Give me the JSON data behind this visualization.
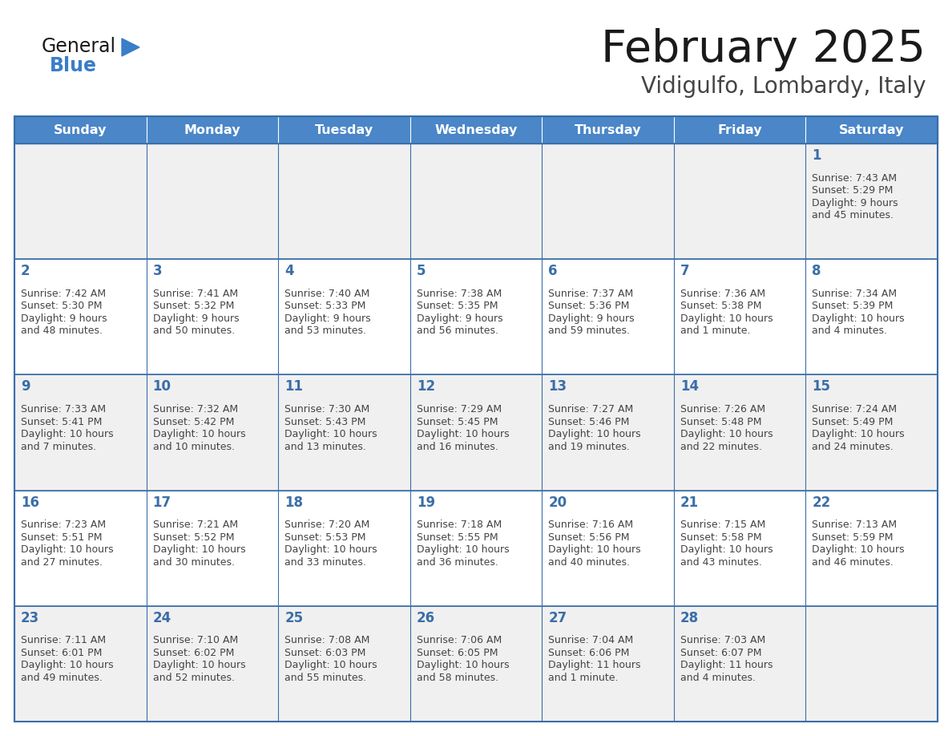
{
  "title": "February 2025",
  "subtitle": "Vidigulfo, Lombardy, Italy",
  "days_of_week": [
    "Sunday",
    "Monday",
    "Tuesday",
    "Wednesday",
    "Thursday",
    "Friday",
    "Saturday"
  ],
  "header_bg": "#4A86C8",
  "header_text": "#FFFFFF",
  "cell_bg_white": "#FFFFFF",
  "cell_bg_gray": "#F0F0F0",
  "day_num_bg": "#E8E8E8",
  "border_color": "#3A6EA8",
  "text_color": "#444444",
  "title_color": "#1a1a1a",
  "subtitle_color": "#444444",
  "day_num_color": "#3A6EA8",
  "logo_general_color": "#1a1a1a",
  "logo_blue_color": "#3A7DC9",
  "calendar": [
    [
      null,
      null,
      null,
      null,
      null,
      null,
      {
        "day": 1,
        "sunrise": "7:43 AM",
        "sunset": "5:29 PM",
        "daylight": "9 hours and 45 minutes."
      }
    ],
    [
      {
        "day": 2,
        "sunrise": "7:42 AM",
        "sunset": "5:30 PM",
        "daylight": "9 hours and 48 minutes."
      },
      {
        "day": 3,
        "sunrise": "7:41 AM",
        "sunset": "5:32 PM",
        "daylight": "9 hours and 50 minutes."
      },
      {
        "day": 4,
        "sunrise": "7:40 AM",
        "sunset": "5:33 PM",
        "daylight": "9 hours and 53 minutes."
      },
      {
        "day": 5,
        "sunrise": "7:38 AM",
        "sunset": "5:35 PM",
        "daylight": "9 hours and 56 minutes."
      },
      {
        "day": 6,
        "sunrise": "7:37 AM",
        "sunset": "5:36 PM",
        "daylight": "9 hours and 59 minutes."
      },
      {
        "day": 7,
        "sunrise": "7:36 AM",
        "sunset": "5:38 PM",
        "daylight": "10 hours and 1 minute."
      },
      {
        "day": 8,
        "sunrise": "7:34 AM",
        "sunset": "5:39 PM",
        "daylight": "10 hours and 4 minutes."
      }
    ],
    [
      {
        "day": 9,
        "sunrise": "7:33 AM",
        "sunset": "5:41 PM",
        "daylight": "10 hours and 7 minutes."
      },
      {
        "day": 10,
        "sunrise": "7:32 AM",
        "sunset": "5:42 PM",
        "daylight": "10 hours and 10 minutes."
      },
      {
        "day": 11,
        "sunrise": "7:30 AM",
        "sunset": "5:43 PM",
        "daylight": "10 hours and 13 minutes."
      },
      {
        "day": 12,
        "sunrise": "7:29 AM",
        "sunset": "5:45 PM",
        "daylight": "10 hours and 16 minutes."
      },
      {
        "day": 13,
        "sunrise": "7:27 AM",
        "sunset": "5:46 PM",
        "daylight": "10 hours and 19 minutes."
      },
      {
        "day": 14,
        "sunrise": "7:26 AM",
        "sunset": "5:48 PM",
        "daylight": "10 hours and 22 minutes."
      },
      {
        "day": 15,
        "sunrise": "7:24 AM",
        "sunset": "5:49 PM",
        "daylight": "10 hours and 24 minutes."
      }
    ],
    [
      {
        "day": 16,
        "sunrise": "7:23 AM",
        "sunset": "5:51 PM",
        "daylight": "10 hours and 27 minutes."
      },
      {
        "day": 17,
        "sunrise": "7:21 AM",
        "sunset": "5:52 PM",
        "daylight": "10 hours and 30 minutes."
      },
      {
        "day": 18,
        "sunrise": "7:20 AM",
        "sunset": "5:53 PM",
        "daylight": "10 hours and 33 minutes."
      },
      {
        "day": 19,
        "sunrise": "7:18 AM",
        "sunset": "5:55 PM",
        "daylight": "10 hours and 36 minutes."
      },
      {
        "day": 20,
        "sunrise": "7:16 AM",
        "sunset": "5:56 PM",
        "daylight": "10 hours and 40 minutes."
      },
      {
        "day": 21,
        "sunrise": "7:15 AM",
        "sunset": "5:58 PM",
        "daylight": "10 hours and 43 minutes."
      },
      {
        "day": 22,
        "sunrise": "7:13 AM",
        "sunset": "5:59 PM",
        "daylight": "10 hours and 46 minutes."
      }
    ],
    [
      {
        "day": 23,
        "sunrise": "7:11 AM",
        "sunset": "6:01 PM",
        "daylight": "10 hours and 49 minutes."
      },
      {
        "day": 24,
        "sunrise": "7:10 AM",
        "sunset": "6:02 PM",
        "daylight": "10 hours and 52 minutes."
      },
      {
        "day": 25,
        "sunrise": "7:08 AM",
        "sunset": "6:03 PM",
        "daylight": "10 hours and 55 minutes."
      },
      {
        "day": 26,
        "sunrise": "7:06 AM",
        "sunset": "6:05 PM",
        "daylight": "10 hours and 58 minutes."
      },
      {
        "day": 27,
        "sunrise": "7:04 AM",
        "sunset": "6:06 PM",
        "daylight": "11 hours and 1 minute."
      },
      {
        "day": 28,
        "sunrise": "7:03 AM",
        "sunset": "6:07 PM",
        "daylight": "11 hours and 4 minutes."
      },
      null
    ]
  ]
}
